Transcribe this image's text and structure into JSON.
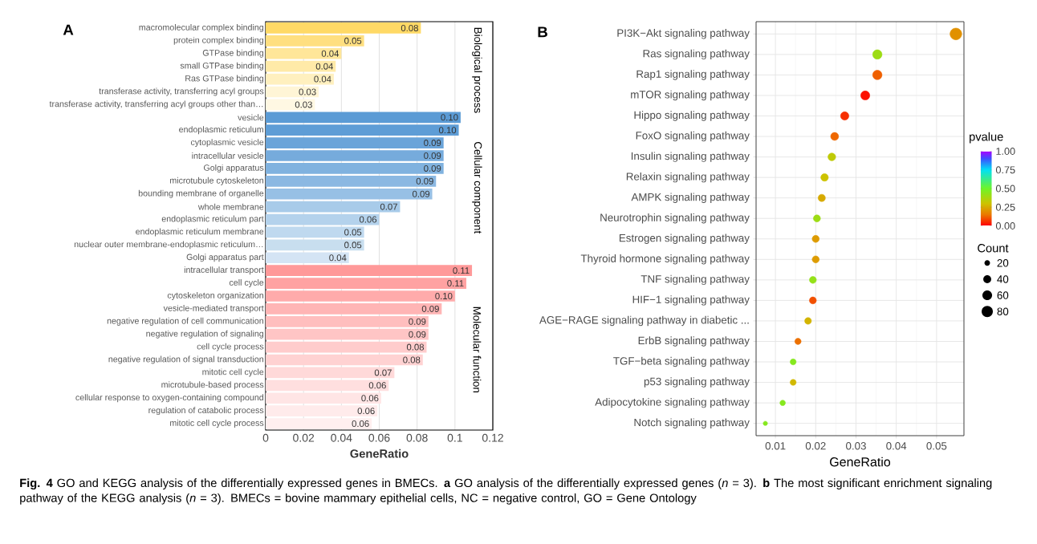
{
  "chart_data": [
    {
      "type": "bar",
      "orientation": "horizontal",
      "categories": [
        "macromolecular complex binding",
        "protein complex binding",
        "GTPase binding",
        "small GTPase binding",
        "Ras GTPase binding",
        "transferase activity, transferring acyl groups",
        "transferase activity, transferring acyl groups other than…",
        "vesicle",
        "endoplasmic reticulum",
        "cytoplasmic vesicle",
        "intracellular vesicle",
        "Golgi apparatus",
        "microtubule cytoskeleton",
        "bounding membrane of organelle",
        "whole membrane",
        "endoplasmic reticulum part",
        "endoplasmic reticulum membrane",
        "nuclear outer membrane-endoplasmic reticulum…",
        "Golgi apparatus part",
        "intracellular transport",
        "cell cycle",
        "cytoskeleton organization",
        "vesicle-mediated transport",
        "negative regulation of cell communication",
        "negative regulation of signaling",
        "cell cycle process",
        "negative regulation of signal transduction",
        "mitotic cell cycle",
        "microtubule-based process",
        "cellular response to oxygen-containing compound",
        "regulation of catabolic process",
        "mitotic cell cycle process"
      ],
      "values": [
        0.082,
        0.052,
        0.04,
        0.037,
        0.036,
        0.028,
        0.026,
        0.103,
        0.102,
        0.094,
        0.094,
        0.094,
        0.09,
        0.088,
        0.071,
        0.06,
        0.052,
        0.052,
        0.044,
        0.109,
        0.106,
        0.1,
        0.093,
        0.086,
        0.086,
        0.085,
        0.083,
        0.068,
        0.065,
        0.061,
        0.059,
        0.056
      ],
      "value_labels": [
        "0.08",
        "0.05",
        "0.04",
        "0.04",
        "0.04",
        "0.03",
        "0.03",
        "0.10",
        "0.10",
        "0.09",
        "0.09",
        "0.09",
        "0.09",
        "0.09",
        "0.07",
        "0.06",
        "0.05",
        "0.05",
        "0.04",
        "0.11",
        "0.11",
        "0.10",
        "0.09",
        "0.09",
        "0.09",
        "0.08",
        "0.08",
        "0.07",
        "0.06",
        "0.06",
        "0.06",
        "0.06"
      ],
      "colors": [
        "#ffd966",
        "#ffdf80",
        "#ffe699",
        "#ffeaa8",
        "#fff0bf",
        "#fff5d6",
        "#fff8e3",
        "#5b9bd5",
        "#5e9dd6",
        "#6aa4d9",
        "#76abdc",
        "#80b2df",
        "#8bb8e2",
        "#97c0e5",
        "#a8cbe9",
        "#b4d2ec",
        "#bfd9ef",
        "#c8deef",
        "#d4e4f4",
        "#ff9999",
        "#ffa2a2",
        "#ffabab",
        "#ffb5b5",
        "#ffbebe",
        "#ffc5c5",
        "#ffcccc",
        "#ffd2d2",
        "#ffd9d9",
        "#ffdfdf",
        "#ffe5e5",
        "#ffebeb",
        "#ffefef"
      ],
      "xlim": [
        0,
        0.12
      ],
      "xticks": [
        0,
        0.02,
        0.04,
        0.06,
        0.08,
        0.1,
        0.12
      ],
      "xlabel": "GeneRatio",
      "grid": "x",
      "annotations": [
        "A",
        "Biological process",
        "Cellular component",
        "Molecular function",
        "**Fig. 4** GO and KEGG analysis of the differentially expressed genes in BMECs. **a** GO analysis of the differentially expressed genes (*n* = 3). **b** The most significant enrichment signaling pathway of the KEGG analysis (*n* = 3). BMECs = bovine mammary epithelial cells, NC = negative control, GO = Gene Ontology"
      ]
    },
    {
      "type": "bubble",
      "orientation": "horizontal",
      "categories": [
        "PI3K−Akt signaling pathway",
        "Ras signaling pathway",
        "Rap1 signaling pathway",
        "mTOR signaling pathway",
        "Hippo signaling pathway",
        "FoxO signaling pathway",
        "Insulin signaling pathway",
        "Relaxin signaling pathway",
        "AMPK signaling pathway",
        "Neurotrophin signaling pathway",
        "Estrogen signaling pathway",
        "Thyroid hormone signaling pathway",
        "TNF signaling pathway",
        "HIF−1 signaling pathway",
        "AGE−RAGE signaling pathway in diabetic ...",
        "ErbB signaling pathway",
        "TGF−beta signaling pathway",
        "p53 signaling pathway",
        "Adipocytokine signaling pathway",
        "Notch signaling pathway"
      ],
      "values": [
        0.0548,
        0.0353,
        0.0353,
        0.0323,
        0.0272,
        0.0247,
        0.024,
        0.0222,
        0.0215,
        0.0203,
        0.02,
        0.02,
        0.0193,
        0.0193,
        0.0181,
        0.0156,
        0.0144,
        0.0144,
        0.0118,
        0.0075
      ],
      "sizes": [
        88,
        56,
        56,
        52,
        44,
        40,
        38,
        36,
        34,
        32,
        32,
        32,
        31,
        31,
        29,
        25,
        23,
        23,
        19,
        12
      ],
      "cvalues": [
        0.2,
        0.4,
        0.12,
        0.02,
        0.06,
        0.13,
        0.33,
        0.3,
        0.25,
        0.4,
        0.22,
        0.22,
        0.42,
        0.1,
        0.27,
        0.14,
        0.45,
        0.28,
        0.45,
        0.45
      ],
      "clim": [
        0,
        1
      ],
      "cticks": [
        {
          "value": 0,
          "label": "0.00"
        },
        {
          "value": 0.25,
          "label": "0.25"
        },
        {
          "value": 0.5,
          "label": "0.50"
        },
        {
          "value": 0.75,
          "label": "0.75"
        },
        {
          "value": 1,
          "label": "1.00"
        }
      ],
      "clabel": "pvalue",
      "legend_title": "Count",
      "size_legend": [
        20,
        40,
        60,
        80
      ],
      "xlim": [
        0.0052,
        0.0568
      ],
      "xticks": [
        0.01,
        0.02,
        0.03,
        0.04,
        0.05
      ],
      "xlabel": "GeneRatio",
      "grid": true,
      "annotations": [
        "B"
      ]
    }
  ]
}
